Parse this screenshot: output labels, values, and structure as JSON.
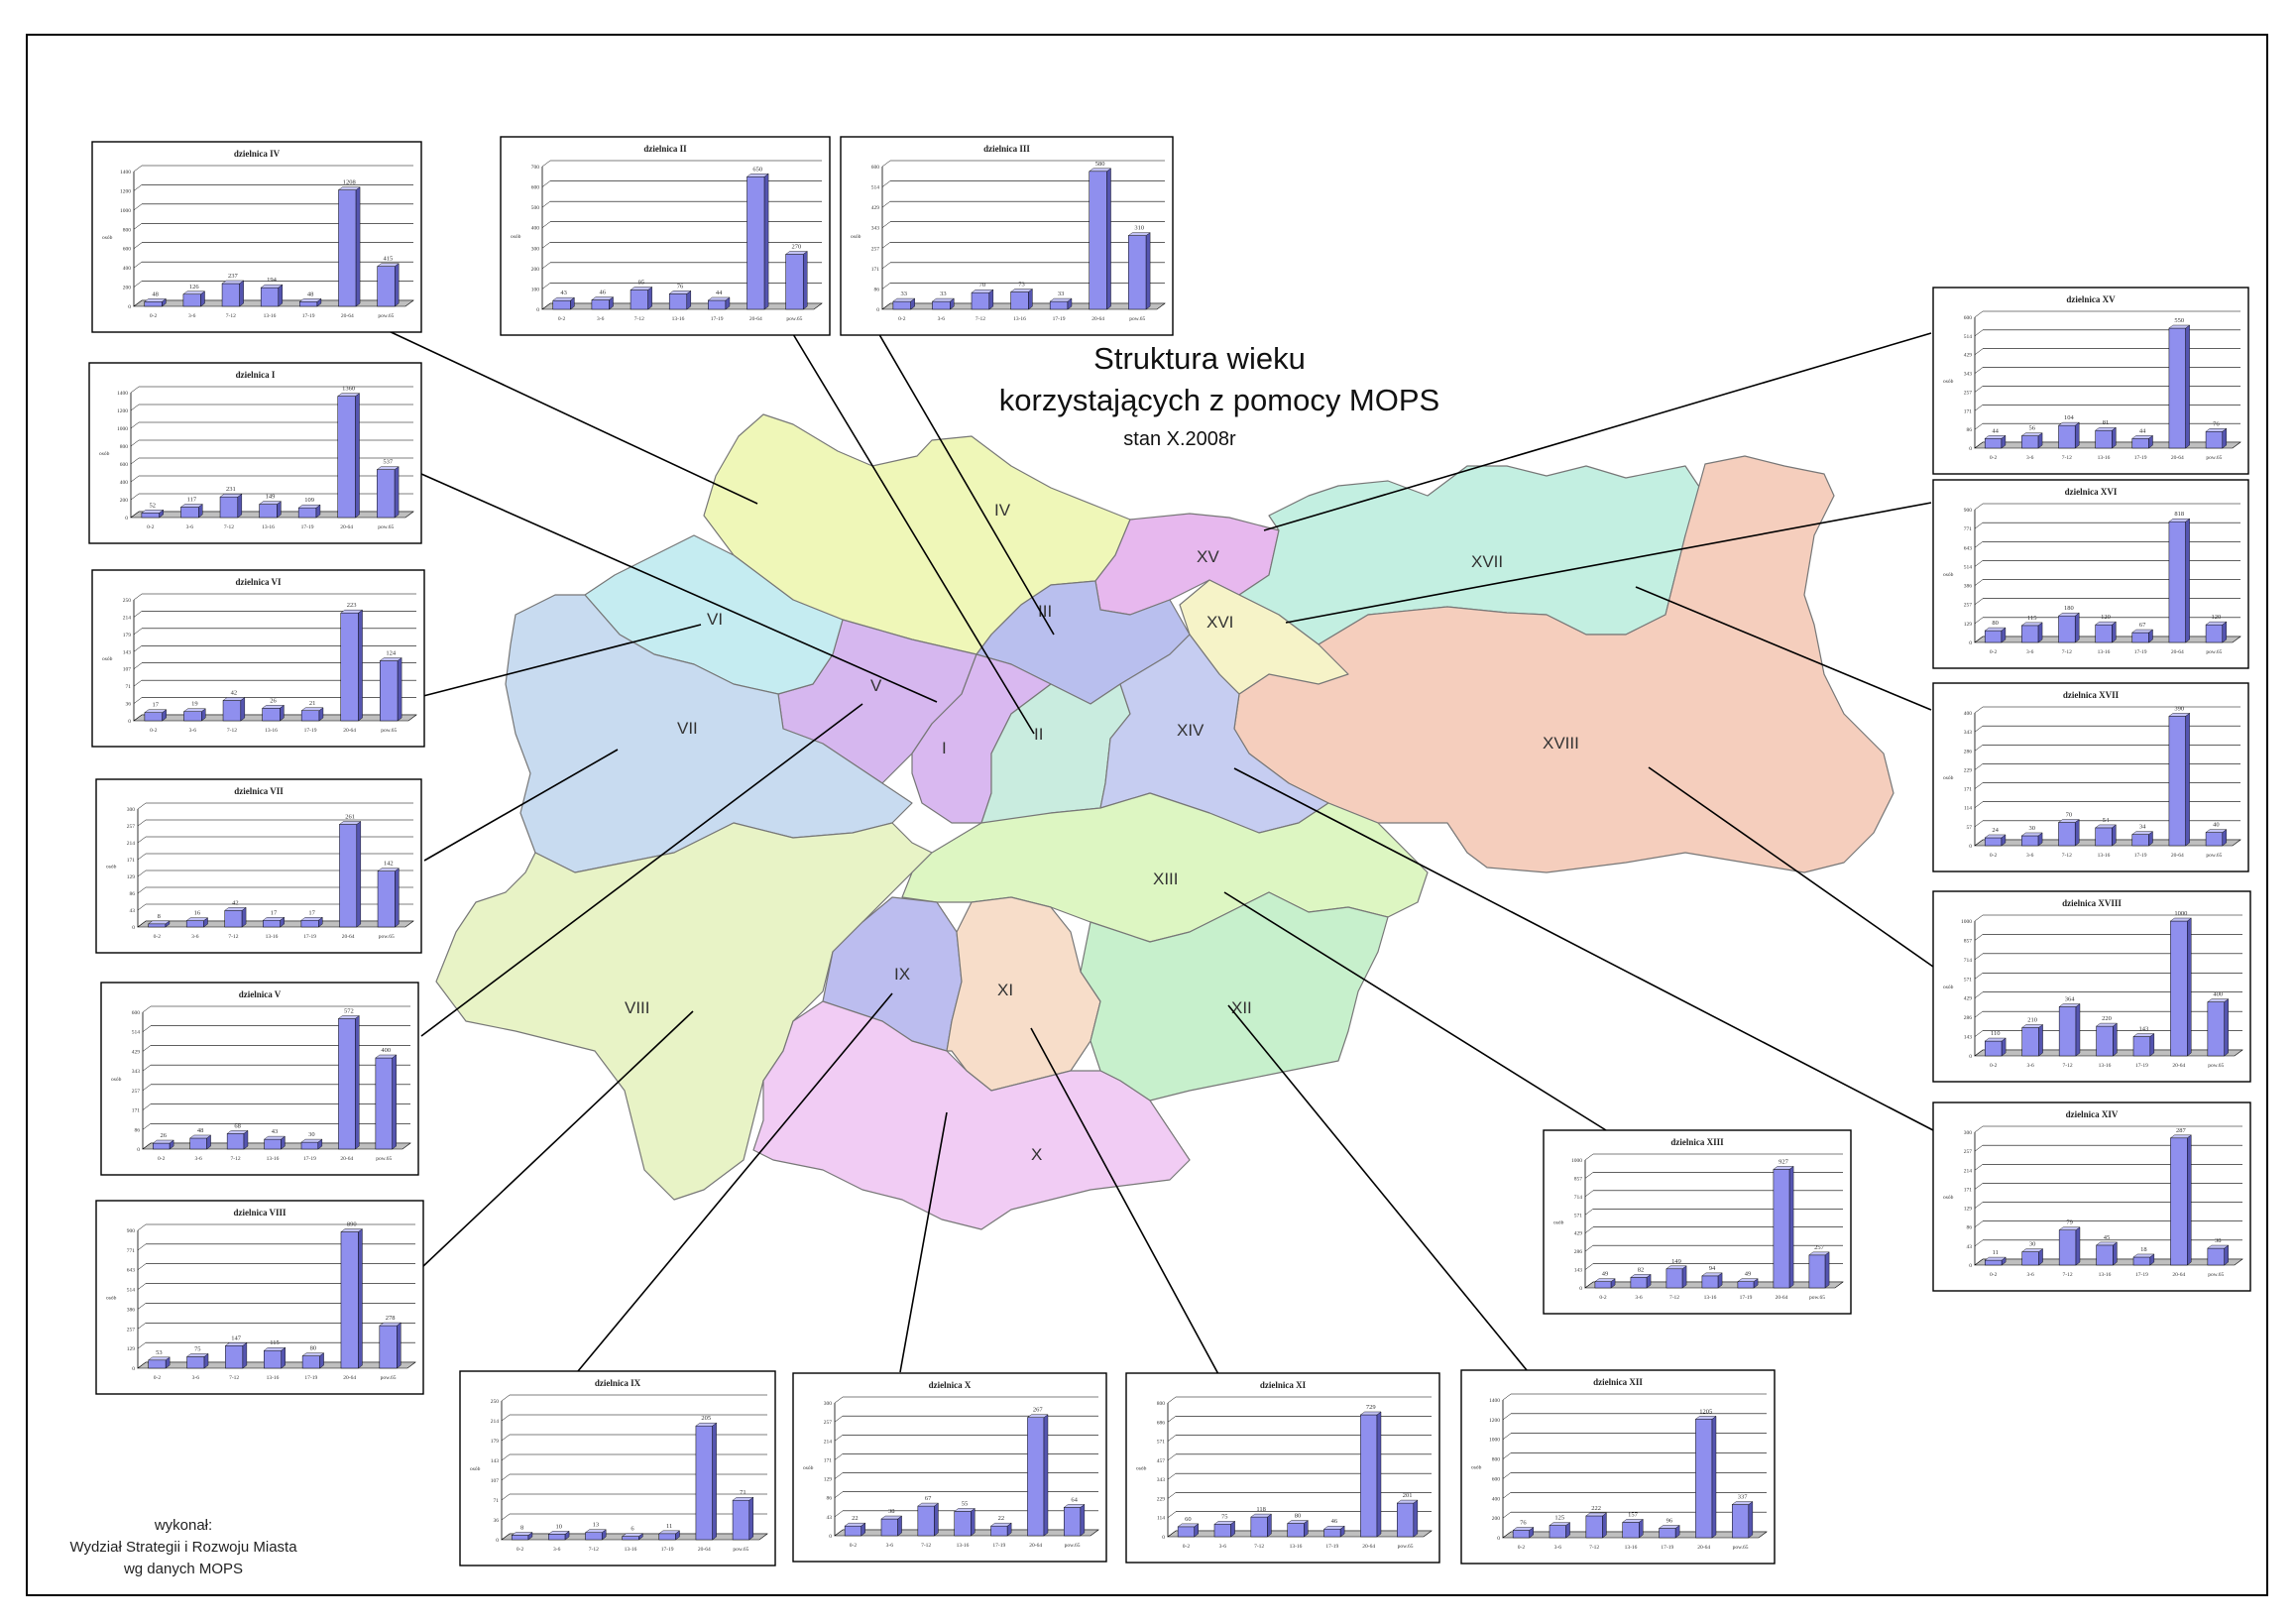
{
  "title": {
    "line1": "Struktura wieku",
    "line2": "korzystających z pomocy MOPS",
    "subtitle": "stan X.2008r"
  },
  "credit": {
    "line1": "wykonał:",
    "line2": "Wydział Strategii i Rozwoju Miasta",
    "line3": "wg danych MOPS"
  },
  "colors": {
    "I": "#d9b8f0",
    "II": "#c9ecdf",
    "III": "#b9bfee",
    "IV": "#eff7b8",
    "V": "#d6b7ef",
    "VI": "#c5ecf1",
    "VII": "#c8dbf0",
    "VIII": "#e8f3c6",
    "IX": "#bcbdef",
    "X": "#f1ccf4",
    "XI": "#f7ddc9",
    "XII": "#c7f0cc",
    "XIII": "#ddf6c2",
    "XIV": "#c6cdf1",
    "XV": "#e7b8ee",
    "XVI": "#f6f3c8",
    "XVII": "#c3efe1",
    "XVIII": "#f5cebd",
    "bar": "#8f8fee",
    "bar_dark": "#5555b0"
  },
  "districts": [
    "I",
    "II",
    "III",
    "IV",
    "V",
    "VI",
    "VII",
    "VIII",
    "IX",
    "X",
    "XI",
    "XII",
    "XIII",
    "XIV",
    "XV",
    "XVI",
    "XVII",
    "XVIII"
  ],
  "chart_data": [
    {
      "type": "bar",
      "title": "dzielnica IV",
      "ylabel": "osób",
      "categories": [
        "0-2",
        "3-6",
        "7-12",
        "13-16",
        "17-19",
        "20-64",
        "pow.65"
      ],
      "values": [
        48,
        126,
        237,
        194,
        48,
        1208,
        415
      ],
      "ylim": [
        0,
        1400
      ]
    },
    {
      "type": "bar",
      "title": "dzielnica II",
      "ylabel": "osób",
      "categories": [
        "0-2",
        "3-6",
        "7-12",
        "13-16",
        "17-19",
        "20-64",
        "pow.65"
      ],
      "values": [
        43,
        46,
        95,
        76,
        44,
        650,
        270
      ],
      "ylim": [
        0,
        700
      ]
    },
    {
      "type": "bar",
      "title": "dzielnica III",
      "ylabel": "osób",
      "categories": [
        "0-2",
        "3-6",
        "7-12",
        "13-16",
        "17-19",
        "20-64",
        "pow.65"
      ],
      "values": [
        33,
        33,
        70,
        73,
        33,
        580,
        310
      ],
      "ylim": [
        0,
        600
      ]
    },
    {
      "type": "bar",
      "title": "dzielnica I",
      "ylabel": "osób",
      "categories": [
        "0-2",
        "3-6",
        "7-12",
        "13-16",
        "17-19",
        "20-64",
        "pow.65"
      ],
      "values": [
        52,
        117,
        231,
        149,
        109,
        1360,
        537
      ],
      "ylim": [
        0,
        1400
      ]
    },
    {
      "type": "bar",
      "title": "dzielnica VI",
      "ylabel": "osób",
      "categories": [
        "0-2",
        "3-6",
        "7-12",
        "13-16",
        "17-19",
        "20-64",
        "pow.65"
      ],
      "values": [
        17,
        19,
        42,
        26,
        21,
        223,
        124
      ],
      "ylim": [
        0,
        250
      ]
    },
    {
      "type": "bar",
      "title": "dzielnica VII",
      "ylabel": "osób",
      "categories": [
        "0-2",
        "3-6",
        "7-12",
        "13-16",
        "17-19",
        "20-64",
        "pow.65"
      ],
      "values": [
        8,
        16,
        42,
        17,
        17,
        261,
        142
      ],
      "ylim": [
        0,
        300
      ]
    },
    {
      "type": "bar",
      "title": "dzielnica V",
      "ylabel": "osób",
      "categories": [
        "0-2",
        "3-6",
        "7-12",
        "13-16",
        "17-19",
        "20-64",
        "pow.65"
      ],
      "values": [
        26,
        48,
        68,
        43,
        30,
        572,
        400
      ],
      "ylim": [
        0,
        600
      ]
    },
    {
      "type": "bar",
      "title": "dzielnica VIII",
      "ylabel": "osób",
      "categories": [
        "0-2",
        "3-6",
        "7-12",
        "13-16",
        "17-19",
        "20-64",
        "pow.65"
      ],
      "values": [
        53,
        75,
        147,
        115,
        80,
        890,
        278
      ],
      "ylim": [
        0,
        900
      ]
    },
    {
      "type": "bar",
      "title": "dzielnica IX",
      "ylabel": "osób",
      "categories": [
        "0-2",
        "3-6",
        "7-12",
        "13-16",
        "17-19",
        "20-64",
        "pow.65"
      ],
      "values": [
        8,
        10,
        13,
        6,
        11,
        205,
        71
      ],
      "ylim": [
        0,
        250
      ]
    },
    {
      "type": "bar",
      "title": "dzielnica X",
      "ylabel": "osób",
      "categories": [
        "0-2",
        "3-6",
        "7-12",
        "13-16",
        "17-19",
        "20-64",
        "pow.65"
      ],
      "values": [
        22,
        38,
        67,
        55,
        22,
        267,
        64
      ],
      "ylim": [
        0,
        300
      ]
    },
    {
      "type": "bar",
      "title": "dzielnica XI",
      "ylabel": "osób",
      "categories": [
        "0-2",
        "3-6",
        "7-12",
        "13-16",
        "17-19",
        "20-64",
        "pow.65"
      ],
      "values": [
        60,
        75,
        118,
        80,
        46,
        729,
        201
      ],
      "ylim": [
        0,
        800
      ]
    },
    {
      "type": "bar",
      "title": "dzielnica XII",
      "ylabel": "osób",
      "categories": [
        "0-2",
        "3-6",
        "7-12",
        "13-16",
        "17-19",
        "20-64",
        "pow.65"
      ],
      "values": [
        76,
        125,
        222,
        157,
        96,
        1205,
        337
      ],
      "ylim": [
        0,
        1400
      ]
    },
    {
      "type": "bar",
      "title": "dzielnica XIII",
      "ylabel": "osób",
      "categories": [
        "0-2",
        "3-6",
        "7-12",
        "13-16",
        "17-19",
        "20-64",
        "pow.65"
      ],
      "values": [
        49,
        82,
        149,
        94,
        49,
        927,
        257
      ],
      "ylim": [
        0,
        1000
      ]
    },
    {
      "type": "bar",
      "title": "dzielnica XIV",
      "ylabel": "osób",
      "categories": [
        "0-2",
        "3-6",
        "7-12",
        "13-16",
        "17-19",
        "20-64",
        "pow.65"
      ],
      "values": [
        11,
        30,
        79,
        45,
        18,
        287,
        38
      ],
      "ylim": [
        0,
        300
      ]
    },
    {
      "type": "bar",
      "title": "dzielnica XV",
      "ylabel": "osób",
      "categories": [
        "0-2",
        "3-6",
        "7-12",
        "13-16",
        "17-19",
        "20-64",
        "pow.65"
      ],
      "values": [
        44,
        56,
        104,
        81,
        44,
        550,
        76
      ],
      "ylim": [
        0,
        600
      ]
    },
    {
      "type": "bar",
      "title": "dzielnica XVI",
      "ylabel": "osób",
      "categories": [
        "0-2",
        "3-6",
        "7-12",
        "13-16",
        "17-19",
        "20-64",
        "pow.65"
      ],
      "values": [
        80,
        115,
        180,
        120,
        67,
        818,
        120
      ],
      "ylim": [
        0,
        900
      ]
    },
    {
      "type": "bar",
      "title": "dzielnica XVII",
      "ylabel": "osób",
      "categories": [
        "0-2",
        "3-6",
        "7-12",
        "13-16",
        "17-19",
        "20-64",
        "pow.65"
      ],
      "values": [
        24,
        30,
        70,
        54,
        34,
        390,
        40
      ],
      "ylim": [
        0,
        400
      ]
    },
    {
      "type": "bar",
      "title": "dzielnica XVIII",
      "ylabel": "osób",
      "categories": [
        "0-2",
        "3-6",
        "7-12",
        "13-16",
        "17-19",
        "20-64",
        "pow.65"
      ],
      "values": [
        110,
        210,
        364,
        220,
        143,
        1000,
        400
      ],
      "ylim": [
        0,
        1000
      ]
    }
  ]
}
